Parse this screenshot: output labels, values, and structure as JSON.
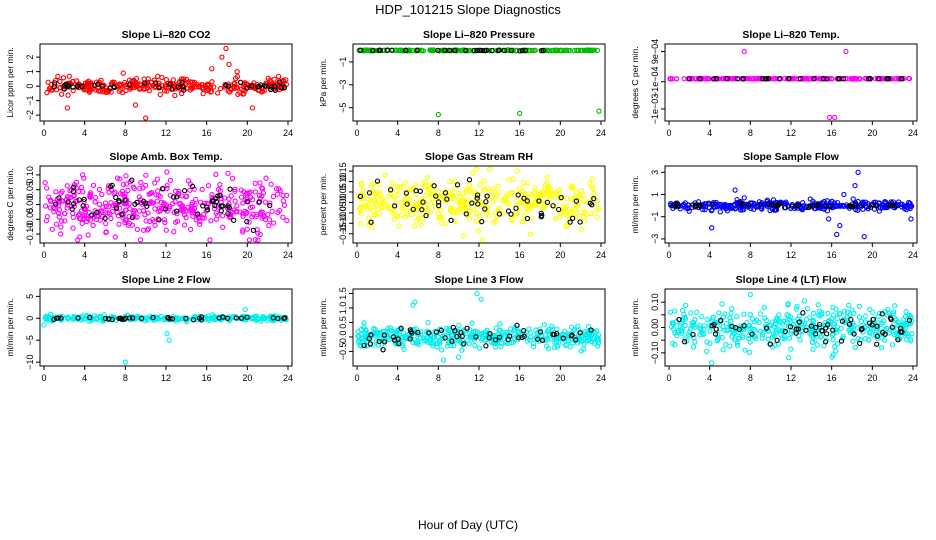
{
  "figure": {
    "title": "HDP_101215  Slope Diagnostics",
    "xlabel": "Hour of Day (UTC)"
  },
  "chart_data": [
    {
      "type": "scatter",
      "title": "Slope Li–820 CO2",
      "ylabel": "Licor ppm per min.",
      "color": "#ff0000",
      "xlim": [
        0,
        24
      ],
      "xticks": [
        0,
        4,
        8,
        12,
        16,
        20,
        24
      ],
      "ylim": [
        -2.2,
        2.7
      ],
      "yticks": [
        -2,
        -1,
        0,
        1,
        2
      ],
      "ytick_labels": [
        "−2",
        "−1",
        "0",
        "1",
        "2"
      ],
      "series": {
        "center": 0,
        "spread": 0.25,
        "black_spread": 0.15,
        "n": 300,
        "nb": 45,
        "outliers": [
          [
            2.3,
            -1.5
          ],
          [
            7.8,
            0.9
          ],
          [
            9.0,
            -1.3
          ],
          [
            10.0,
            -2.2
          ],
          [
            17.5,
            2.0
          ],
          [
            17.9,
            2.6
          ],
          [
            18.2,
            1.5
          ],
          [
            20.5,
            -1.5
          ],
          [
            19.0,
            1.0
          ],
          [
            16.5,
            1.2
          ]
        ]
      }
    },
    {
      "type": "scatter",
      "title": "Slope Li–820 Pressure",
      "ylabel": "kPa per min.",
      "color": "#00bb00",
      "xlim": [
        0,
        24
      ],
      "xticks": [
        0,
        4,
        8,
        12,
        16,
        20,
        24
      ],
      "ylim": [
        -5.9,
        0.3
      ],
      "yticks": [
        -5,
        -3,
        -1
      ],
      "ytick_labels": [
        "−5",
        "−3",
        "−1"
      ],
      "series": {
        "center": 0,
        "spread": 0.02,
        "black_spread": 0.01,
        "n": 200,
        "nb": 30,
        "outliers": [
          [
            8.0,
            -5.6
          ],
          [
            16.0,
            -5.5
          ],
          [
            23.8,
            -5.3
          ]
        ]
      }
    },
    {
      "type": "scatter",
      "title": "Slope Li–820 Temp.",
      "ylabel": "degrees C per min.",
      "color": "#ff00ff",
      "xlim": [
        0,
        24
      ],
      "xticks": [
        0,
        4,
        8,
        12,
        16,
        20,
        24
      ],
      "ylim": [
        -0.0013,
        0.00105
      ],
      "yticks": [
        -0.001,
        -0.0001,
        0.0009
      ],
      "ytick_labels": [
        "−1e−03",
        "−1e−04",
        "9e−04"
      ],
      "series": {
        "center": 0,
        "spread": 5e-06,
        "black_spread": 3e-06,
        "n": 200,
        "nb": 30,
        "outliers": [
          [
            0.1,
            0
          ],
          [
            7.4,
            0.0009
          ],
          [
            17.4,
            0.0009
          ],
          [
            15.8,
            -0.00128
          ],
          [
            16.3,
            -0.00128
          ]
        ]
      }
    },
    {
      "type": "scatter",
      "title": "Slope Amb. Box Temp.",
      "ylabel": "degrees C per min.",
      "color": "#ff00ff",
      "xlim": [
        0,
        24
      ],
      "xticks": [
        0,
        4,
        8,
        12,
        16,
        20,
        24
      ],
      "ylim": [
        -0.12,
        0.12
      ],
      "yticks": [
        -0.1,
        -0.05,
        0,
        0.05,
        0.1
      ],
      "ytick_labels": [
        "−0.10",
        "−0.05",
        "0.00",
        "0.05",
        "0.10"
      ],
      "series": {
        "center": 0,
        "spread": 0.045,
        "black_spread": 0.035,
        "n": 420,
        "nb": 60,
        "outliers": [
          [
            3.8,
            0.1
          ],
          [
            20.2,
            -0.12
          ],
          [
            7.0,
            -0.11
          ]
        ]
      }
    },
    {
      "type": "scatter",
      "title": "Slope Gas Stream RH",
      "ylabel": "percent per min.",
      "color": "#ffff00",
      "xlim": [
        0,
        24
      ],
      "xticks": [
        0,
        4,
        8,
        12,
        16,
        20,
        24
      ],
      "ylim": [
        -0.18,
        0.16
      ],
      "yticks": [
        -0.15,
        -0.1,
        -0.05,
        0,
        0.05,
        0.1,
        0.15
      ],
      "ytick_labels": [
        "−0.15",
        "−0.10",
        "−0.05",
        "0.00",
        "0.05",
        "0.10",
        "0.15"
      ],
      "series": {
        "center": 0,
        "spread": 0.06,
        "black_spread": 0.05,
        "n": 400,
        "nb": 55,
        "outliers": [
          [
            11.4,
            0.14
          ],
          [
            10.5,
            -0.16
          ]
        ]
      }
    },
    {
      "type": "scatter",
      "title": "Slope Sample Flow",
      "ylabel": "ml/min per min.",
      "color": "#0000ff",
      "xlim": [
        0,
        24
      ],
      "xticks": [
        0,
        4,
        8,
        12,
        16,
        20,
        24
      ],
      "ylim": [
        -3.1,
        3.3
      ],
      "yticks": [
        -3,
        -1,
        1,
        3
      ],
      "ytick_labels": [
        "−3",
        "−1",
        "1",
        "3"
      ],
      "series": {
        "center": 0,
        "spread": 0.2,
        "black_spread": 0.1,
        "n": 320,
        "nb": 45,
        "outliers": [
          [
            4.2,
            -2.0
          ],
          [
            6.5,
            1.4
          ],
          [
            7.4,
            0.7
          ],
          [
            15.7,
            -1.2
          ],
          [
            16.5,
            -2.6
          ],
          [
            18.3,
            1.8
          ],
          [
            18.6,
            3.0
          ],
          [
            19.2,
            -2.8
          ],
          [
            17.2,
            1.0
          ],
          [
            23.8,
            -1.2
          ],
          [
            16.8,
            -1.8
          ]
        ]
      }
    },
    {
      "type": "scatter",
      "title": "Slope Line 2 Flow",
      "ylabel": "ml/min per min.",
      "color": "#00eeee",
      "xlim": [
        0,
        24
      ],
      "xticks": [
        0,
        4,
        8,
        12,
        16,
        20,
        24
      ],
      "ylim": [
        -10.2,
        6
      ],
      "yticks": [
        -10,
        -5,
        0,
        5
      ],
      "ytick_labels": [
        "−10",
        "−5",
        "0",
        "5"
      ],
      "series": {
        "center": 0,
        "spread": 0.3,
        "black_spread": 0.15,
        "n": 260,
        "nb": 40,
        "outliers": [
          [
            8.0,
            -10
          ],
          [
            12.1,
            -3.5
          ],
          [
            12.3,
            -5.0
          ],
          [
            0.0,
            -1.5
          ],
          [
            19.8,
            2.0
          ]
        ]
      }
    },
    {
      "type": "scatter",
      "title": "Slope Line 3 Flow",
      "ylabel": "ml/min per min.",
      "color": "#00eeee",
      "xlim": [
        0,
        24
      ],
      "xticks": [
        0,
        4,
        8,
        12,
        16,
        20,
        24
      ],
      "ylim": [
        -0.9,
        1.55
      ],
      "yticks": [
        -0.5,
        0,
        0.5,
        1,
        1.5
      ],
      "ytick_labels": [
        "−0.5",
        "0.0",
        "0.5",
        "1.0",
        "1.5"
      ],
      "series": {
        "center": 0,
        "spread": 0.18,
        "black_spread": 0.15,
        "n": 400,
        "nb": 55,
        "outliers": [
          [
            5.5,
            1.1
          ],
          [
            5.7,
            1.2
          ],
          [
            11.8,
            1.5
          ],
          [
            12.2,
            1.3
          ],
          [
            8.5,
            -0.8
          ],
          [
            10.0,
            -0.7
          ]
        ]
      }
    },
    {
      "type": "scatter",
      "title": "Slope Line 4 (LT) Flow",
      "ylabel": "ml/min per min.",
      "color": "#00eeee",
      "xlim": [
        0,
        24
      ],
      "xticks": [
        0,
        4,
        8,
        12,
        16,
        20,
        24
      ],
      "ylim": [
        -0.14,
        0.14
      ],
      "yticks": [
        -0.1,
        -0.05,
        0,
        0.05,
        0.1
      ],
      "ytick_labels": [
        "−0.10",
        "",
        "0.00",
        "",
        "0.10"
      ],
      "series": {
        "center": 0,
        "spread": 0.04,
        "black_spread": 0.03,
        "n": 420,
        "nb": 60,
        "outliers": [
          [
            4.2,
            -0.14
          ],
          [
            8.0,
            0.13
          ]
        ]
      }
    }
  ]
}
